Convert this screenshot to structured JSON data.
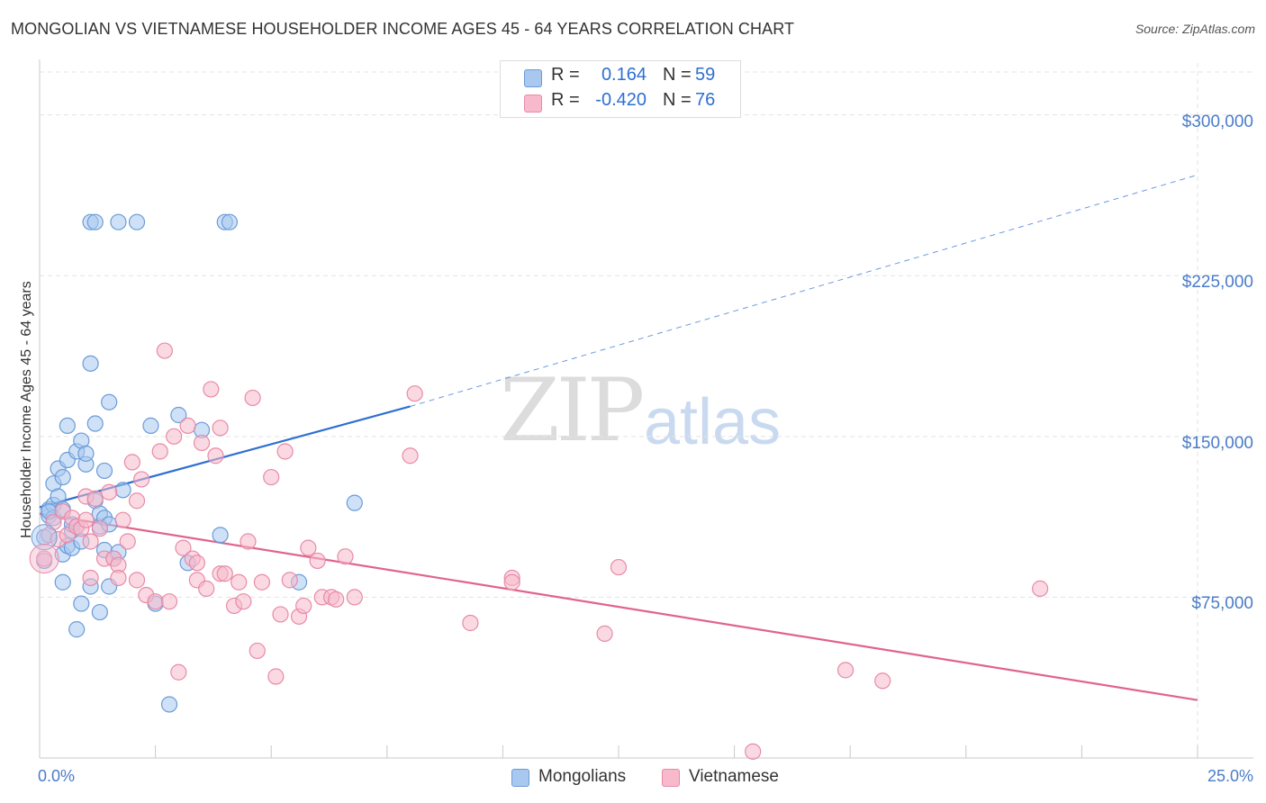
{
  "title": "MONGOLIAN VS VIETNAMESE HOUSEHOLDER INCOME AGES 45 - 64 YEARS CORRELATION CHART",
  "source": "Source: ZipAtlas.com",
  "watermark": {
    "zip": "ZIP",
    "atlas": "atlas"
  },
  "legend": {
    "r_label": "R =",
    "n_label": "N =",
    "rows": [
      {
        "r": "0.164",
        "n": "59",
        "color": "#a8c8f0"
      },
      {
        "r": "-0.420",
        "n": "76",
        "color": "#f7b9cb"
      }
    ]
  },
  "bottom_legend": [
    "Mongolians",
    "Vietnamese"
  ],
  "colors": {
    "mongolians_fill": "#a8c8f0",
    "mongolians_stroke": "#6b9bd8",
    "mongolians_line": "#2d6fd1",
    "vietnamese_fill": "#f7b9cb",
    "vietnamese_stroke": "#e88aa8",
    "vietnamese_line": "#e0648c",
    "axis_text": "#4a7cc9",
    "grid": "#e3e3e3"
  },
  "chart_data": {
    "type": "scatter",
    "title": "MONGOLIAN VS VIETNAMESE HOUSEHOLDER INCOME AGES 45 - 64 YEARS CORRELATION CHART",
    "xlabel": "",
    "ylabel": "Householder Income Ages 45 - 64 years",
    "xlim": [
      0,
      25
    ],
    "ylim": [
      0,
      320000
    ],
    "x_tick_labels": [
      "0.0%",
      "25.0%"
    ],
    "y_ticks": [
      75000,
      150000,
      225000,
      300000
    ],
    "y_tick_labels": [
      "$75,000",
      "$150,000",
      "$225,000",
      "$300,000"
    ],
    "grid": true,
    "legend_position": "top-center",
    "series": [
      {
        "name": "Mongolians",
        "R": 0.164,
        "N": 59,
        "trend": {
          "x": [
            0,
            8.0
          ],
          "y": [
            117000,
            164000
          ]
        },
        "trend_extrapolated": {
          "x": [
            8.0,
            25.0
          ],
          "y": [
            164000,
            272000
          ]
        },
        "points": [
          [
            0.1,
            103000
          ],
          [
            0.1,
            92000
          ],
          [
            0.2,
            113000
          ],
          [
            0.2,
            116000
          ],
          [
            0.3,
            128000
          ],
          [
            0.3,
            118000
          ],
          [
            0.3,
            112000
          ],
          [
            0.4,
            135000
          ],
          [
            0.4,
            122000
          ],
          [
            0.5,
            131000
          ],
          [
            0.5,
            116000
          ],
          [
            0.5,
            82000
          ],
          [
            0.5,
            95000
          ],
          [
            0.6,
            99000
          ],
          [
            0.6,
            139000
          ],
          [
            0.6,
            155000
          ],
          [
            0.7,
            106000
          ],
          [
            0.7,
            98000
          ],
          [
            0.7,
            109000
          ],
          [
            0.8,
            108000
          ],
          [
            0.8,
            143000
          ],
          [
            0.8,
            60000
          ],
          [
            0.9,
            148000
          ],
          [
            0.9,
            72000
          ],
          [
            0.9,
            101000
          ],
          [
            1.0,
            137000
          ],
          [
            1.0,
            142000
          ],
          [
            1.1,
            184000
          ],
          [
            1.1,
            80000
          ],
          [
            1.2,
            156000
          ],
          [
            1.2,
            120000
          ],
          [
            1.3,
            68000
          ],
          [
            1.3,
            108000
          ],
          [
            1.3,
            114000
          ],
          [
            1.4,
            112000
          ],
          [
            1.4,
            134000
          ],
          [
            1.4,
            97000
          ],
          [
            1.5,
            166000
          ],
          [
            1.5,
            109000
          ],
          [
            1.5,
            80000
          ],
          [
            1.6,
            93000
          ],
          [
            1.7,
            96000
          ],
          [
            1.8,
            125000
          ],
          [
            2.4,
            155000
          ],
          [
            2.5,
            72000
          ],
          [
            2.8,
            25000
          ],
          [
            3.0,
            160000
          ],
          [
            3.2,
            91000
          ],
          [
            3.5,
            153000
          ],
          [
            3.9,
            104000
          ],
          [
            5.6,
            82000
          ],
          [
            6.8,
            119000
          ],
          [
            1.1,
            250000
          ],
          [
            1.2,
            250000
          ],
          [
            1.7,
            250000
          ],
          [
            2.1,
            250000
          ],
          [
            4.0,
            250000
          ],
          [
            4.1,
            250000
          ],
          [
            0.2,
            115000
          ]
        ]
      },
      {
        "name": "Vietnamese",
        "R": -0.42,
        "N": 76,
        "trend": {
          "x": [
            0,
            25.0
          ],
          "y": [
            114000,
            27000
          ]
        },
        "points": [
          [
            0.1,
            93000
          ],
          [
            0.2,
            104000
          ],
          [
            0.3,
            110000
          ],
          [
            0.4,
            102000
          ],
          [
            0.5,
            115000
          ],
          [
            0.6,
            104000
          ],
          [
            0.7,
            112000
          ],
          [
            0.8,
            108000
          ],
          [
            0.9,
            107000
          ],
          [
            1.0,
            111000
          ],
          [
            1.0,
            122000
          ],
          [
            1.1,
            84000
          ],
          [
            1.1,
            101000
          ],
          [
            1.2,
            121000
          ],
          [
            1.3,
            107000
          ],
          [
            1.4,
            93000
          ],
          [
            1.5,
            124000
          ],
          [
            1.6,
            93000
          ],
          [
            1.7,
            90000
          ],
          [
            1.7,
            84000
          ],
          [
            1.8,
            111000
          ],
          [
            1.9,
            101000
          ],
          [
            2.0,
            138000
          ],
          [
            2.1,
            83000
          ],
          [
            2.1,
            120000
          ],
          [
            2.2,
            130000
          ],
          [
            2.3,
            76000
          ],
          [
            2.5,
            73000
          ],
          [
            2.6,
            143000
          ],
          [
            2.7,
            190000
          ],
          [
            2.8,
            73000
          ],
          [
            2.9,
            150000
          ],
          [
            3.0,
            40000
          ],
          [
            3.1,
            98000
          ],
          [
            3.2,
            155000
          ],
          [
            3.3,
            93000
          ],
          [
            3.4,
            91000
          ],
          [
            3.4,
            83000
          ],
          [
            3.5,
            147000
          ],
          [
            3.6,
            79000
          ],
          [
            3.7,
            172000
          ],
          [
            3.8,
            141000
          ],
          [
            3.9,
            154000
          ],
          [
            3.9,
            86000
          ],
          [
            4.0,
            86000
          ],
          [
            4.2,
            71000
          ],
          [
            4.3,
            82000
          ],
          [
            4.4,
            73000
          ],
          [
            4.5,
            101000
          ],
          [
            4.6,
            168000
          ],
          [
            4.7,
            50000
          ],
          [
            4.8,
            82000
          ],
          [
            5.0,
            131000
          ],
          [
            5.1,
            38000
          ],
          [
            5.2,
            67000
          ],
          [
            5.3,
            143000
          ],
          [
            5.4,
            83000
          ],
          [
            5.6,
            66000
          ],
          [
            5.7,
            71000
          ],
          [
            5.8,
            98000
          ],
          [
            6.0,
            92000
          ],
          [
            6.1,
            75000
          ],
          [
            6.3,
            75000
          ],
          [
            6.4,
            74000
          ],
          [
            6.6,
            94000
          ],
          [
            6.8,
            75000
          ],
          [
            8.0,
            141000
          ],
          [
            8.1,
            170000
          ],
          [
            9.3,
            63000
          ],
          [
            10.2,
            84000
          ],
          [
            10.2,
            82000
          ],
          [
            12.2,
            58000
          ],
          [
            12.5,
            89000
          ],
          [
            15.4,
            3000
          ],
          [
            17.4,
            41000
          ],
          [
            18.2,
            36000
          ],
          [
            21.6,
            79000
          ]
        ]
      }
    ]
  }
}
